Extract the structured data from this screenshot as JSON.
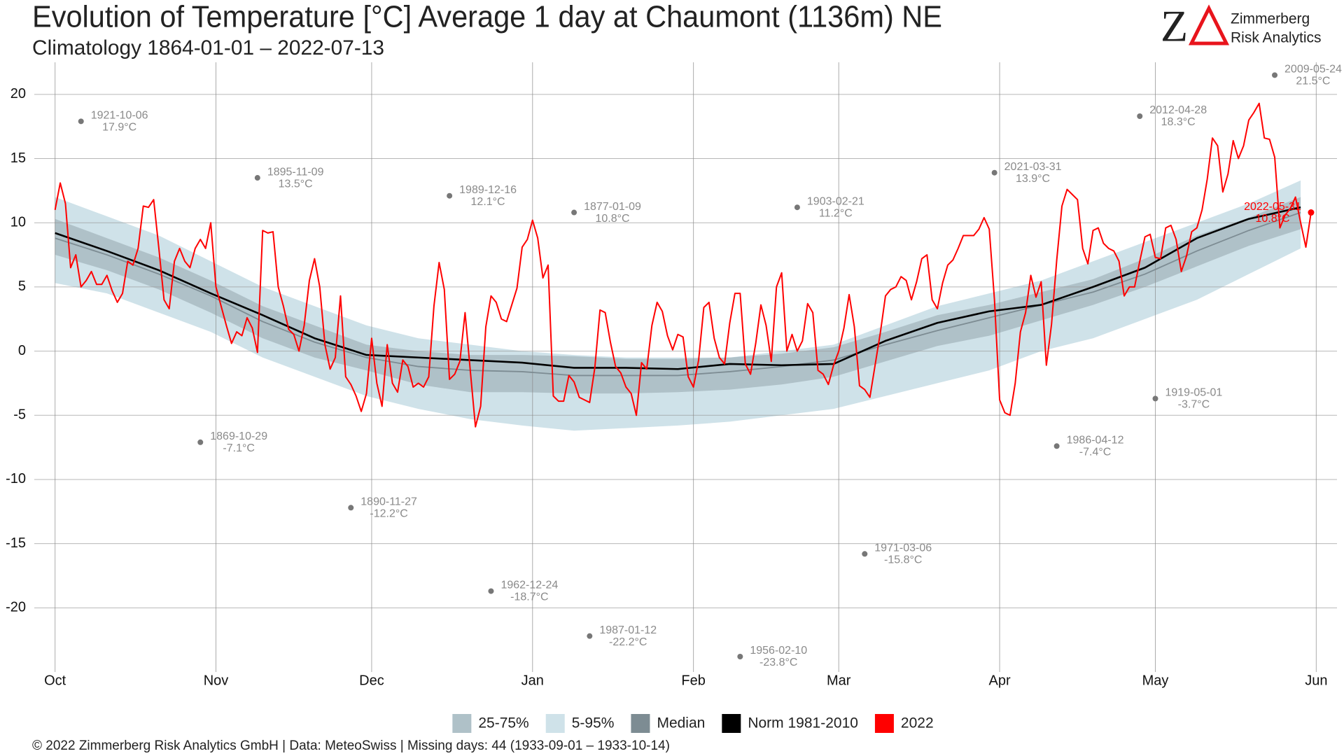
{
  "chart_data": {
    "type": "line",
    "title": "Evolution of Temperature [°C] Average 1 day at Chaumont (1136m) NE",
    "subtitle": "Climatology 1864-01-01 – 2022-07-13",
    "xlim": [
      -4,
      247
    ],
    "ylim": [
      -25,
      22.5
    ],
    "xticks": [
      {
        "value": 0,
        "label": "Oct"
      },
      {
        "value": 31,
        "label": "Nov"
      },
      {
        "value": 61,
        "label": "Dec"
      },
      {
        "value": 92,
        "label": "Jan"
      },
      {
        "value": 123,
        "label": "Feb"
      },
      {
        "value": 151,
        "label": "Mar"
      },
      {
        "value": 182,
        "label": "Apr"
      },
      {
        "value": 212,
        "label": "May"
      },
      {
        "value": 243,
        "label": "Jun"
      }
    ],
    "yticks": [
      20,
      15,
      10,
      5,
      0,
      -5,
      -10,
      -15,
      -20
    ],
    "grid": true,
    "x": [
      0,
      10,
      20,
      30,
      40,
      50,
      60,
      70,
      80,
      90,
      100,
      110,
      120,
      130,
      140,
      150,
      160,
      170,
      180,
      190,
      200,
      210,
      220,
      230,
      240
    ],
    "series": [
      {
        "name": "25-75%",
        "color": "#afc1c8",
        "upper": [
          10.3,
          8.8,
          7.3,
          5.5,
          3.5,
          2,
          0.5,
          0,
          -0.3,
          -0.3,
          -0.4,
          -0.6,
          -0.6,
          -0.5,
          -0.2,
          0.3,
          1.5,
          2.8,
          3.6,
          4.6,
          5.6,
          7.2,
          9,
          10.4,
          12
        ],
        "lower": [
          7.5,
          6.3,
          4.8,
          3,
          1,
          -0.5,
          -1.5,
          -2.6,
          -3.2,
          -3.2,
          -3.3,
          -3.3,
          -3.2,
          -3,
          -2.6,
          -2,
          -0.8,
          0.4,
          1.2,
          2.4,
          3.6,
          5,
          6.6,
          8.2,
          9.5
        ]
      },
      {
        "name": "5-95%",
        "color": "#cfe2e9",
        "upper": [
          12,
          10.5,
          9,
          7,
          5,
          3.5,
          2,
          1,
          0.5,
          0,
          -0.3,
          -0.5,
          -0.5,
          -0.5,
          0,
          0.5,
          2,
          3.5,
          4.5,
          5.5,
          7,
          8.5,
          10,
          11.5,
          13.3
        ],
        "lower": [
          5.3,
          4.5,
          3,
          1.5,
          -0.5,
          -2,
          -3.5,
          -4.5,
          -5.3,
          -5.8,
          -6.2,
          -6,
          -5.8,
          -5.5,
          -5,
          -4.5,
          -3.5,
          -2.5,
          -1.5,
          0,
          1,
          2.5,
          4,
          6,
          8
        ]
      },
      {
        "name": "Median",
        "color": "#7d8c93",
        "values": [
          8.8,
          7.5,
          6,
          4.3,
          2.3,
          0.7,
          -0.5,
          -1.2,
          -1.5,
          -1.6,
          -1.9,
          -1.9,
          -1.9,
          -1.6,
          -1.2,
          -0.7,
          0.5,
          1.6,
          2.6,
          3.6,
          4.6,
          6,
          7.8,
          9.4,
          10.8
        ]
      },
      {
        "name": "Norm 1981-2010",
        "color": "#000000",
        "values": [
          9.2,
          7.8,
          6.3,
          4.5,
          2.8,
          1,
          -0.3,
          -0.5,
          -0.7,
          -0.9,
          -1.3,
          -1.3,
          -1.4,
          -1,
          -1.1,
          -1,
          0.8,
          2.2,
          3.1,
          3.6,
          5,
          6.5,
          8.8,
          10.3,
          11.2
        ]
      },
      {
        "name": "2022",
        "color": "#ff0000",
        "x": [
          0,
          1,
          2,
          3,
          4,
          5,
          6,
          7,
          8,
          9,
          10,
          11,
          12,
          13,
          14,
          15,
          16,
          17,
          18,
          19,
          20,
          21,
          22,
          23,
          24,
          25,
          26,
          27,
          28,
          29,
          30,
          31,
          32,
          33,
          34,
          35,
          36,
          37,
          38,
          39,
          40,
          41,
          42,
          43,
          44,
          45,
          46,
          47,
          48,
          49,
          50,
          51,
          52,
          53,
          54,
          55,
          56,
          57,
          58,
          59,
          60,
          61,
          62,
          63,
          64,
          65,
          66,
          67,
          68,
          69,
          70,
          71,
          72,
          73,
          74,
          75,
          76,
          77,
          78,
          79,
          80,
          81,
          82,
          83,
          84,
          85,
          86,
          87,
          88,
          89,
          90,
          91,
          92,
          93,
          94,
          95,
          96,
          97,
          98,
          99,
          100,
          101,
          102,
          103,
          104,
          105,
          106,
          107,
          108,
          109,
          110,
          111,
          112,
          113,
          114,
          115,
          116,
          117,
          118,
          119,
          120,
          121,
          122,
          123,
          124,
          125,
          126,
          127,
          128,
          129,
          130,
          131,
          132,
          133,
          134,
          135,
          136,
          137,
          138,
          139,
          140,
          141,
          142,
          143,
          144,
          145,
          146,
          147,
          148,
          149,
          150,
          151,
          152,
          153,
          154,
          155,
          156,
          157,
          158,
          159,
          160,
          161,
          162,
          163,
          164,
          165,
          166,
          167,
          168,
          169,
          170,
          171,
          172,
          173,
          174,
          175,
          176,
          177,
          178,
          179,
          180,
          181,
          182,
          183,
          184,
          185,
          186,
          187,
          188,
          189,
          190,
          191,
          192,
          193,
          194,
          195,
          196,
          197,
          198,
          199,
          200,
          201,
          202,
          203,
          204,
          205,
          206,
          207,
          208,
          209,
          210,
          211,
          212,
          213,
          214,
          215,
          216,
          217,
          218,
          219,
          220,
          221,
          222,
          223,
          224,
          225,
          226,
          227,
          228,
          229,
          230,
          231,
          232,
          233,
          234,
          235,
          236,
          237,
          238,
          239,
          240,
          241,
          242
        ],
        "values": [
          11,
          13.1,
          11.5,
          6.5,
          7.5,
          5,
          5.5,
          6.2,
          5.2,
          5.2,
          5.9,
          4.7,
          3.8,
          4.5,
          7,
          6.7,
          8,
          11.3,
          11.2,
          11.8,
          8,
          4,
          3.3,
          7,
          8,
          7,
          6.5,
          8,
          8.7,
          8,
          10,
          5,
          3.5,
          2,
          0.6,
          1.5,
          1.2,
          2.6,
          1.8,
          -0.1,
          9.4,
          9.2,
          9.3,
          5,
          3.5,
          1.7,
          1.3,
          0,
          2,
          5.5,
          7.2,
          5,
          0.5,
          -1.4,
          -0.5,
          4.3,
          -2,
          -2.6,
          -3.5,
          -4.7,
          -3.3,
          1,
          -2.5,
          -4.3,
          0.5,
          -2.5,
          -3.2,
          -0.7,
          -1.2,
          -2.8,
          -2.5,
          -2.8,
          -2,
          3.5,
          6.9,
          4.8,
          -2.2,
          -1.8,
          -0.8,
          3,
          -1.5,
          -5.9,
          -4.3,
          1.9,
          4.3,
          3.8,
          2.5,
          2.3,
          3.6,
          4.9,
          8.1,
          8.7,
          10.2,
          8.8,
          5.7,
          6.7,
          -3.5,
          -3.9,
          -3.9,
          -1.9,
          -2.4,
          -3.6,
          -3.8,
          -4,
          -1.3,
          3.2,
          3,
          0.7,
          -1.2,
          -1.7,
          -2.8,
          -3.3,
          -5,
          -0.9,
          -1.4,
          2,
          3.8,
          3.1,
          1.2,
          0.1,
          1.3,
          1.1,
          -2,
          -2.8,
          -0.7,
          3.4,
          3.8,
          1,
          -0.5,
          -1,
          2.2,
          4.5,
          4.5,
          -1,
          -1.8,
          0.6,
          3.6,
          2,
          -0.8,
          5,
          6.1,
          0,
          1.3,
          0,
          0.8,
          3.7,
          3,
          -1.5,
          -1.8,
          -2.6,
          -1.1,
          0,
          1.8,
          4.4,
          1.9,
          -2.7,
          -3,
          -3.6,
          -1.1,
          1.4,
          4.3,
          4.8,
          5,
          5.8,
          5.5,
          4,
          5.4,
          7.2,
          7.5,
          4,
          3.3,
          5.3,
          6.7,
          7.1,
          8,
          9,
          9,
          9,
          9.5,
          10.4,
          9.5,
          4,
          -3.8,
          -4.8,
          -5,
          -2.5,
          1.5,
          3,
          5.9,
          4.2,
          5.4,
          -1.1,
          2.1,
          7.1,
          11.3,
          12.6,
          12.2,
          11.8,
          8,
          6.8,
          9.4,
          9.6,
          8.4,
          8,
          7.8,
          7,
          4.3,
          5,
          5,
          7,
          8.9,
          9.1,
          7.3,
          7.2,
          9.6,
          9.8,
          8.7,
          6.2,
          7.4,
          9.3,
          9.6,
          11,
          13.4,
          16.6,
          16,
          12.4,
          13.8,
          16.4,
          15,
          16,
          18,
          18.6,
          19.3,
          16.6,
          16.5,
          15.1,
          9.6,
          10.6,
          11.1,
          12,
          10,
          8.1,
          10.8
        ],
        "end_label": "2022-05-31",
        "end_value_label": "10.8°C"
      }
    ],
    "records": [
      {
        "date": "1921-10-06",
        "x": 5,
        "value": 17.9,
        "value_label": "17.9°C"
      },
      {
        "date": "1895-11-09",
        "x": 39,
        "value": 13.5,
        "value_label": "13.5°C"
      },
      {
        "date": "1869-10-29",
        "x": 28,
        "value": -7.1,
        "value_label": "-7.1°C"
      },
      {
        "date": "1890-11-27",
        "x": 57,
        "value": -12.2,
        "value_label": "-12.2°C"
      },
      {
        "date": "1989-12-16",
        "x": 76,
        "value": 12.1,
        "value_label": "12.1°C"
      },
      {
        "date": "1962-12-24",
        "x": 84,
        "value": -18.7,
        "value_label": "-18.7°C"
      },
      {
        "date": "1877-01-09",
        "x": 100,
        "value": 10.8,
        "value_label": "10.8°C"
      },
      {
        "date": "1987-01-12",
        "x": 103,
        "value": -22.2,
        "value_label": "-22.2°C"
      },
      {
        "date": "1956-02-10",
        "x": 132,
        "value": -23.8,
        "value_label": "-23.8°C"
      },
      {
        "date": "1903-02-21",
        "x": 143,
        "value": 11.2,
        "value_label": "11.2°C"
      },
      {
        "date": "1971-03-06",
        "x": 156,
        "value": -15.8,
        "value_label": "-15.8°C"
      },
      {
        "date": "2021-03-31",
        "x": 181,
        "value": 13.9,
        "value_label": "13.9°C"
      },
      {
        "date": "1986-04-12",
        "x": 193,
        "value": -7.4,
        "value_label": "-7.4°C"
      },
      {
        "date": "2012-04-28",
        "x": 209,
        "value": 18.3,
        "value_label": "18.3°C"
      },
      {
        "date": "1919-05-01",
        "x": 212,
        "value": -3.7,
        "value_label": "-3.7°C"
      },
      {
        "date": "2009-05-24",
        "x": 235,
        "value": 21.5,
        "value_label": "21.5°C"
      }
    ]
  },
  "logo": {
    "mark": "Z",
    "name": "Zimmerberg",
    "sub": "Risk Analytics"
  },
  "footer": "©  2022 Zimmerberg Risk Analytics GmbH | Data: MeteoSwiss | Missing days: 44 (1933-09-01 – 1933-10-14)"
}
